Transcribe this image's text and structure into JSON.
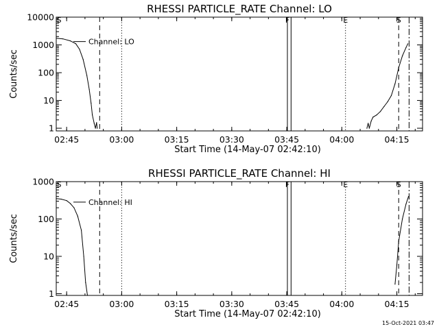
{
  "chart_data": [
    {
      "type": "line",
      "title": "RHESSI PARTICLE_RATE Channel: LO",
      "xlabel": "Start Time (14-May-07 02:42:10)",
      "ylabel": "Counts/sec",
      "yscale": "log",
      "xlim": [
        "02:42:10",
        "04:22:00"
      ],
      "ylim": [
        0.8,
        10000
      ],
      "xticks": [
        "02:45",
        "03:00",
        "03:15",
        "03:30",
        "03:45",
        "04:00",
        "04:15"
      ],
      "yticks": [
        "1",
        "10",
        "100",
        "1000",
        "10000"
      ],
      "series": [
        {
          "name": "Channel: LO",
          "label_text": "Channel: LO",
          "segments": [
            [
              [
                "02:42:10",
                1750
              ],
              [
                "02:44:00",
                1650
              ],
              [
                "02:46:00",
                1400
              ],
              [
                "02:47:30",
                1100
              ],
              [
                "02:48:30",
                700
              ],
              [
                "02:49:30",
                300
              ],
              [
                "02:50:30",
                80
              ],
              [
                "02:51:10",
                25
              ],
              [
                "02:51:40",
                8
              ],
              [
                "02:52:00",
                3
              ],
              [
                "02:52:30",
                1.5
              ],
              [
                "02:52:50",
                1.0
              ],
              [
                "02:53:10",
                1.6
              ],
              [
                "02:53:20",
                1.0
              ]
            ],
            [
              [
                "04:06:50",
                1.0
              ],
              [
                "04:07:10",
                1.5
              ],
              [
                "04:07:30",
                1.0
              ],
              [
                "04:08:00",
                1.8
              ],
              [
                "04:08:30",
                2.5
              ],
              [
                "04:09:30",
                3
              ],
              [
                "04:10:30",
                4
              ],
              [
                "04:11:30",
                6
              ],
              [
                "04:12:30",
                9
              ],
              [
                "04:13:30",
                15
              ],
              [
                "04:14:30",
                40
              ],
              [
                "04:15:30",
                150
              ],
              [
                "04:16:30",
                400
              ],
              [
                "04:17:30",
                800
              ],
              [
                "04:18:00",
                1100
              ]
            ]
          ]
        }
      ],
      "markers": [
        {
          "label": "S",
          "time": "02:42:10",
          "style": "none"
        },
        {
          "label": "",
          "time": "02:54:00",
          "style": "dashed"
        },
        {
          "label": "",
          "time": "03:00:00",
          "style": "dotted"
        },
        {
          "label": "F",
          "time": "03:45:10",
          "style": "solid"
        },
        {
          "label": "",
          "time": "03:46:10",
          "style": "solid"
        },
        {
          "label": "E",
          "time": "04:01:00",
          "style": "dotted"
        },
        {
          "label": "S",
          "time": "04:15:30",
          "style": "dashed"
        },
        {
          "label": "",
          "time": "04:18:20",
          "style": "dashdot"
        }
      ]
    },
    {
      "type": "line",
      "title": "RHESSI PARTICLE_RATE Channel: HI",
      "xlabel": "Start Time (14-May-07 02:42:10)",
      "ylabel": "Counts/sec",
      "yscale": "log",
      "xlim": [
        "02:42:10",
        "04:22:00"
      ],
      "ylim": [
        0.9,
        1000
      ],
      "xticks": [
        "02:45",
        "03:00",
        "03:15",
        "03:30",
        "03:45",
        "04:00",
        "04:15"
      ],
      "yticks": [
        "1",
        "10",
        "100",
        "1000"
      ],
      "series": [
        {
          "name": "Channel: HI",
          "label_text": "Channel: HI",
          "segments": [
            [
              [
                "02:42:10",
                350
              ],
              [
                "02:43:30",
                340
              ],
              [
                "02:45:00",
                310
              ],
              [
                "02:46:00",
                260
              ],
              [
                "02:47:00",
                200
              ],
              [
                "02:48:00",
                120
              ],
              [
                "02:49:00",
                50
              ],
              [
                "02:49:40",
                10
              ],
              [
                "02:50:10",
                2
              ],
              [
                "02:50:40",
                0.9
              ]
            ],
            [
              [
                "04:14:30",
                1.8
              ],
              [
                "04:15:00",
                6
              ],
              [
                "04:15:30",
                25
              ],
              [
                "04:16:30",
                100
              ],
              [
                "04:17:30",
                250
              ],
              [
                "04:18:10",
                400
              ]
            ]
          ]
        }
      ],
      "markers": [
        {
          "label": "S",
          "time": "02:42:10",
          "style": "none"
        },
        {
          "label": "",
          "time": "02:54:00",
          "style": "dashed"
        },
        {
          "label": "",
          "time": "03:00:00",
          "style": "dotted"
        },
        {
          "label": "F",
          "time": "03:45:10",
          "style": "solid"
        },
        {
          "label": "",
          "time": "03:46:10",
          "style": "solid"
        },
        {
          "label": "E",
          "time": "04:01:00",
          "style": "dotted"
        },
        {
          "label": "S",
          "time": "04:15:30",
          "style": "dashed"
        },
        {
          "label": "",
          "time": "04:18:20",
          "style": "dashdot"
        }
      ]
    }
  ],
  "footer": {
    "timestamp": "15-Oct-2021 03:47"
  }
}
